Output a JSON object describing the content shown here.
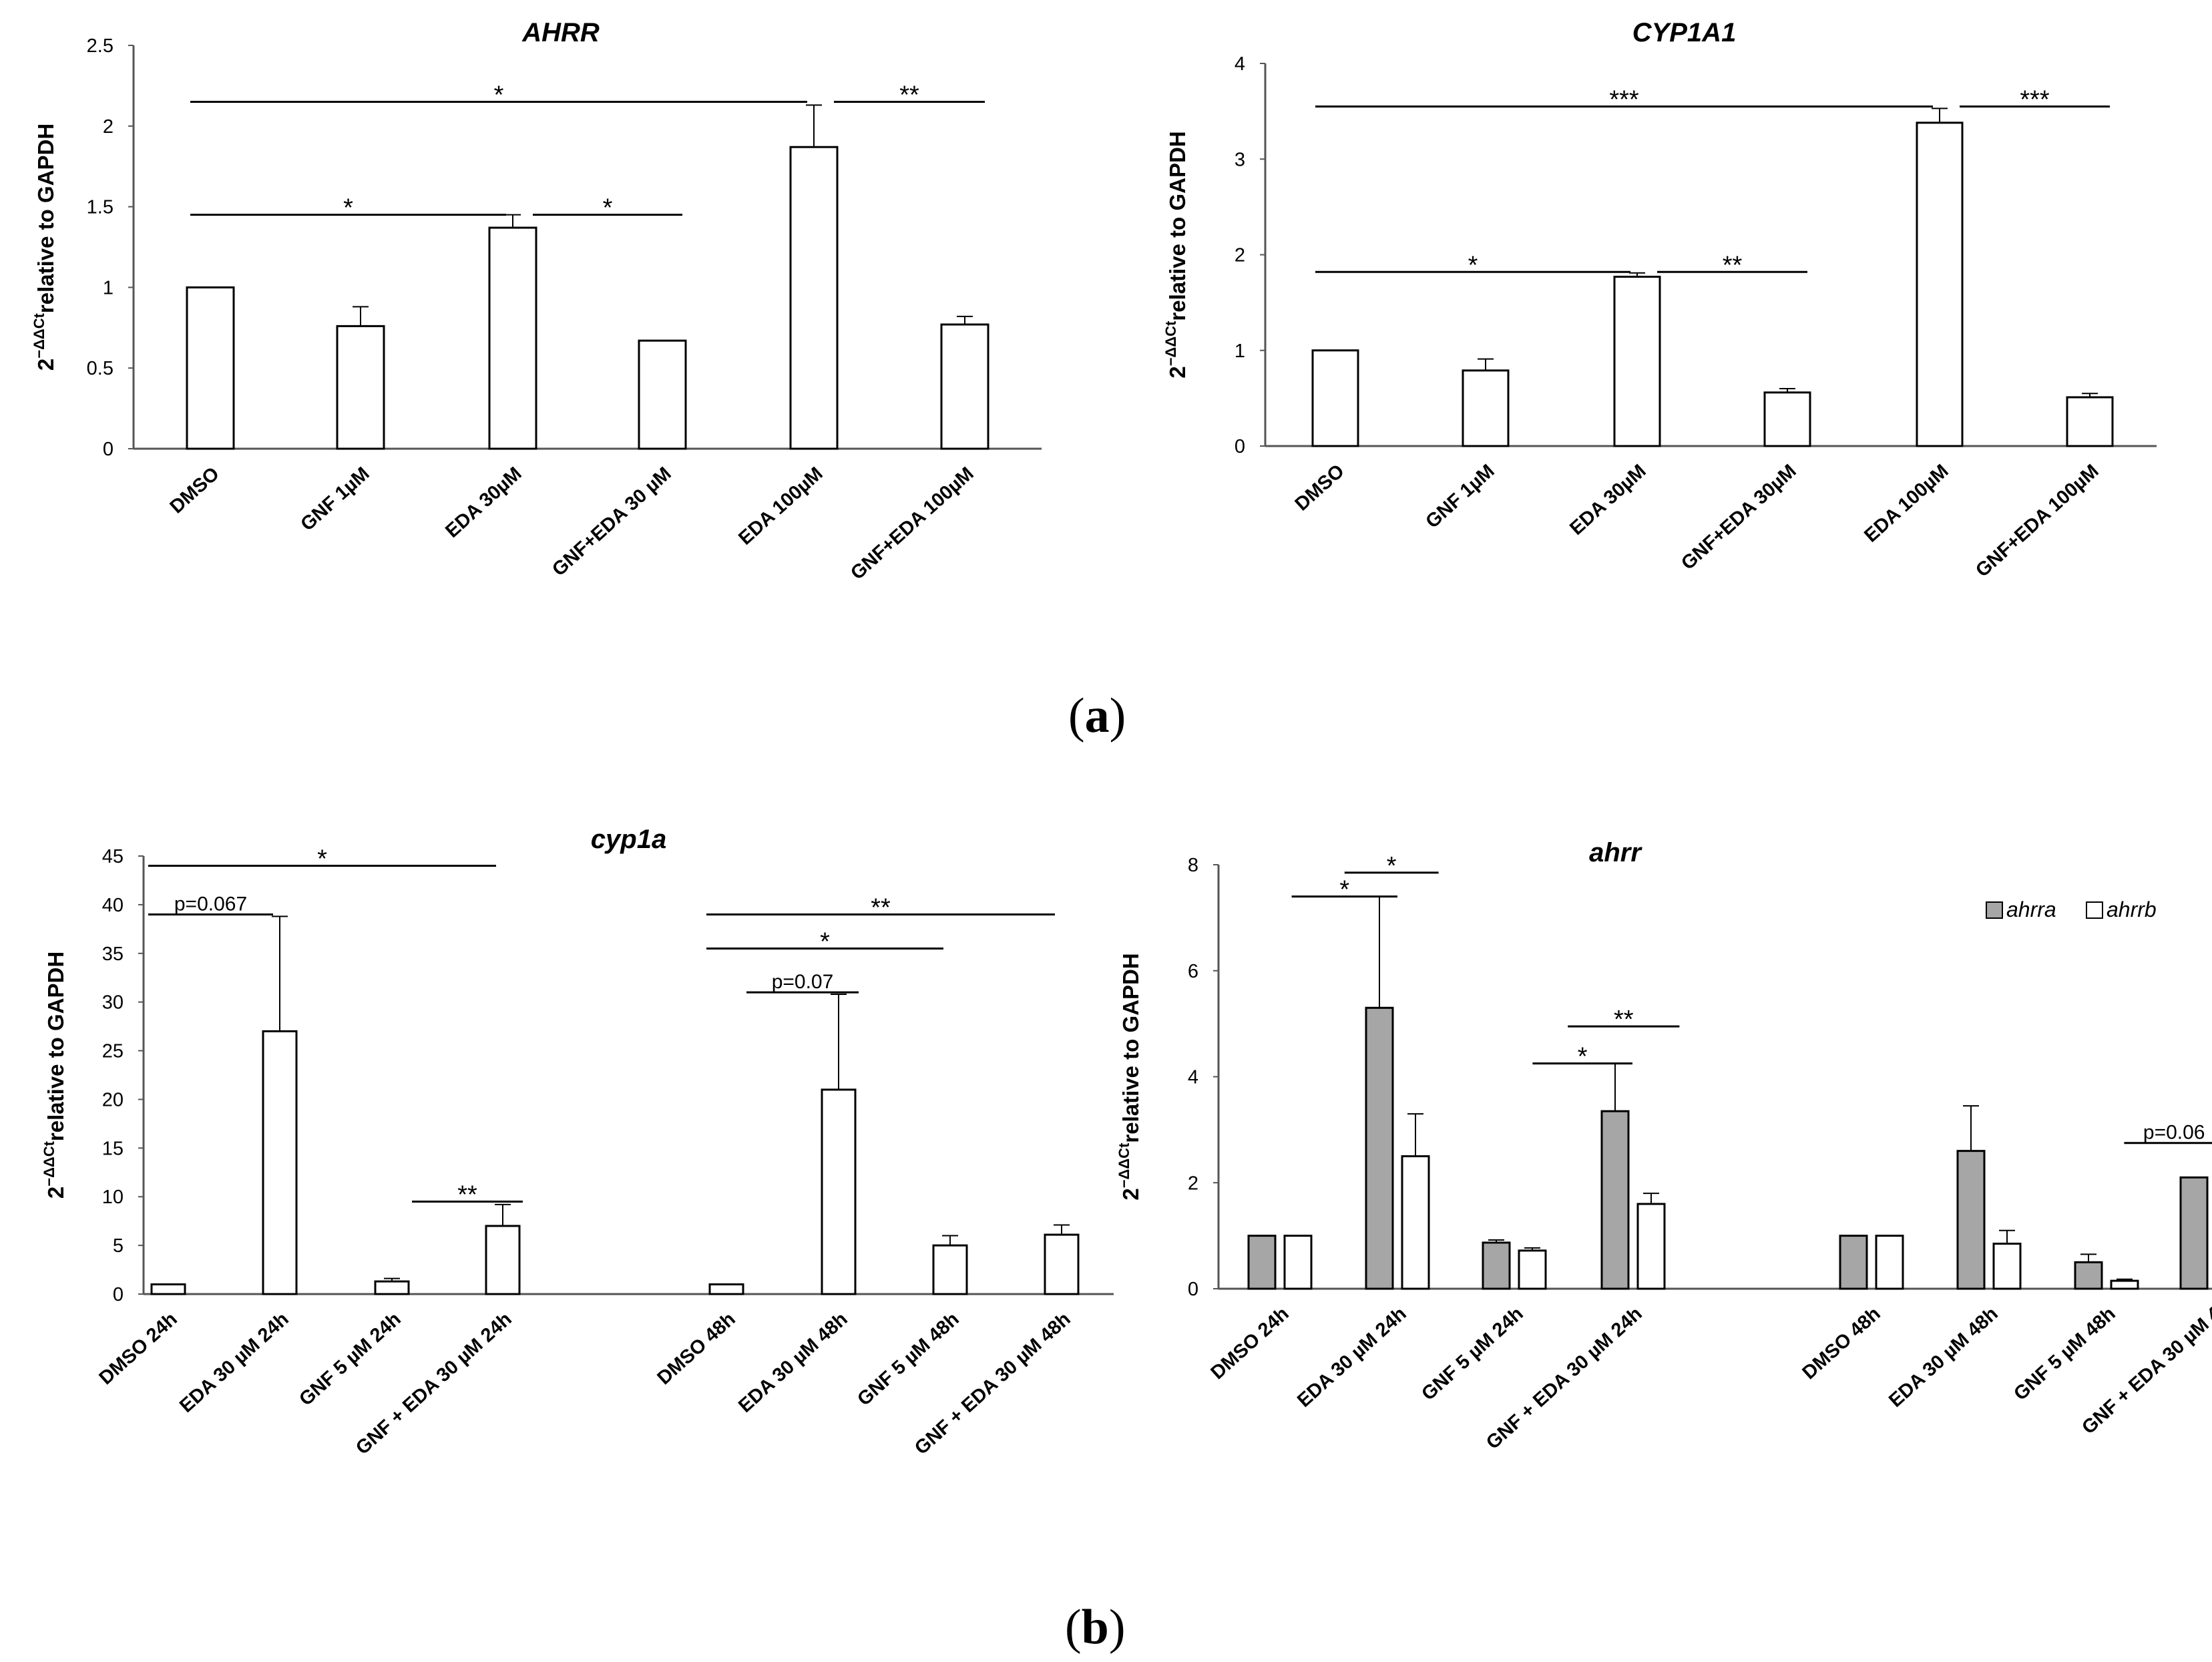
{
  "panels": {
    "a": {
      "label_open": "(",
      "label_letter": "a",
      "label_close": ")"
    },
    "b": {
      "label_open": "(",
      "label_letter": "b",
      "label_close": ")"
    }
  },
  "colors": {
    "bar_fill": "#ffffff",
    "bar_gray": "#a6a6a6",
    "stroke": "#000000"
  },
  "chart_data": [
    {
      "id": "ahrr",
      "type": "bar",
      "title": "AHRR",
      "ylabel_base": "2",
      "ylabel_sup": "−ΔΔCt",
      "ylabel_rest": "relative to GAPDH",
      "ylim": [
        0,
        2.5
      ],
      "yticks": [
        0,
        0.5,
        1,
        1.5,
        2,
        2.5
      ],
      "ytick_labels": [
        "0",
        "0.5",
        "1",
        "1.5",
        "2",
        "2.5"
      ],
      "categories": [
        "DMSO",
        "GNF 1µM",
        "EDA 30µM",
        "GNF+EDA 30 µM",
        "EDA 100µM",
        "GNF+EDA 100µM"
      ],
      "series": [
        {
          "name": "AHRR",
          "color": "#ffffff",
          "values": [
            1.0,
            0.76,
            1.37,
            0.67,
            1.87,
            0.77
          ],
          "errors": [
            0,
            0.12,
            0.08,
            0,
            0.26,
            0.05
          ]
        }
      ],
      "significance": [
        {
          "from": 0,
          "to": 4,
          "label": "*",
          "y": 2.15
        },
        {
          "from": 4,
          "to": 5,
          "label": "**",
          "y": 2.15
        },
        {
          "from": 0,
          "to": 2,
          "label": "*",
          "y": 1.45
        },
        {
          "from": 2,
          "to": 3,
          "label": "*",
          "y": 1.45
        }
      ]
    },
    {
      "id": "cyp1a1",
      "type": "bar",
      "title": "CYP1A1",
      "ylabel_base": "2",
      "ylabel_sup": "−ΔΔCt",
      "ylabel_rest": "relative to GAPDH",
      "ylim": [
        0,
        4
      ],
      "yticks": [
        0,
        1,
        2,
        3,
        4
      ],
      "ytick_labels": [
        "0",
        "1",
        "2",
        "3",
        "4"
      ],
      "categories": [
        "DMSO",
        "GNF 1µM",
        "EDA 30µM",
        "GNF+EDA 30µM",
        "EDA 100µM",
        "GNF+EDA 100µM"
      ],
      "series": [
        {
          "name": "CYP1A1",
          "color": "#ffffff",
          "values": [
            1.0,
            0.79,
            1.77,
            0.56,
            3.38,
            0.51
          ],
          "errors": [
            0,
            0.12,
            0.04,
            0.04,
            0.15,
            0.04
          ]
        }
      ],
      "significance": [
        {
          "from": 0,
          "to": 4,
          "label": "***",
          "y": 3.55
        },
        {
          "from": 4,
          "to": 5,
          "label": "***",
          "y": 3.55
        },
        {
          "from": 0,
          "to": 2,
          "label": "*",
          "y": 1.82
        },
        {
          "from": 2,
          "to": 3,
          "label": "**",
          "y": 1.82
        }
      ]
    },
    {
      "id": "cyp1a",
      "type": "bar",
      "title": "cyp1a",
      "ylabel_base": "2",
      "ylabel_sup": "−ΔΔCt",
      "ylabel_rest": "relative to GAPDH",
      "ylim": [
        0,
        45
      ],
      "yticks": [
        0,
        5,
        10,
        15,
        20,
        25,
        30,
        35,
        40,
        45
      ],
      "ytick_labels": [
        "0",
        "5",
        "10",
        "15",
        "20",
        "25",
        "30",
        "35",
        "40",
        "45"
      ],
      "categories": [
        "DMSO 24h",
        "EDA 30 µM 24h",
        "GNF 5 µM 24h",
        "GNF + EDA 30 µM 24h",
        "DMSO 48h",
        "EDA 30 µM 48h",
        "GNF 5 µM 48h",
        "GNF + EDA 30 µM 48h"
      ],
      "series": [
        {
          "name": "cyp1a",
          "color": "#ffffff",
          "values": [
            1.0,
            27.0,
            1.3,
            7.0,
            1.0,
            21.0,
            5.0,
            6.1
          ],
          "errors": [
            0,
            11.8,
            0.3,
            2.2,
            0,
            9.8,
            1.0,
            1.0
          ]
        }
      ],
      "significance": [
        {
          "from": 0,
          "to": 3,
          "label": "*",
          "y": 44.0
        },
        {
          "from": 0,
          "to": 1,
          "label": "p=0.067",
          "y": 39.0
        },
        {
          "from": 2,
          "to": 3,
          "label": "**",
          "y": 9.5
        },
        {
          "from": 4,
          "to": 7,
          "label": "**",
          "y": 39.0
        },
        {
          "from": 4,
          "to": 6,
          "label": "*",
          "y": 35.5
        },
        {
          "from": 4,
          "to": 5,
          "label": "p=0.07",
          "y": 31.0
        }
      ]
    },
    {
      "id": "ahrr-zebrafish",
      "type": "bar",
      "title": "ahrr",
      "ylabel_base": "2",
      "ylabel_sup": "−ΔΔCt",
      "ylabel_rest": "relative to GAPDH",
      "ylim": [
        0,
        8
      ],
      "yticks": [
        0,
        2,
        4,
        6,
        8
      ],
      "ytick_labels": [
        "0",
        "2",
        "4",
        "6",
        "8"
      ],
      "legend": "top-right",
      "categories": [
        "DMSO 24h",
        "EDA 30 µM 24h",
        "GNF 5 µM 24h",
        "GNF + EDA 30 µM 24h",
        "DMSO 48h",
        "EDA 30 µM 48h",
        "GNF 5 µM 48h",
        "GNF + EDA 30 µM 4"
      ],
      "series": [
        {
          "name": "ahrra",
          "color": "#a6a6a6",
          "values": [
            1.0,
            5.3,
            0.87,
            3.35,
            1.0,
            2.6,
            0.5,
            2.1
          ],
          "errors": [
            0,
            2.1,
            0.05,
            0.9,
            0,
            0.85,
            0.15,
            0
          ]
        },
        {
          "name": "ahrrb",
          "color": "#ffffff",
          "values": [
            1.0,
            2.5,
            0.72,
            1.6,
            1.0,
            0.85,
            0.15,
            null
          ],
          "errors": [
            0,
            0.8,
            0.05,
            0.2,
            0,
            0.25,
            0.03,
            0
          ]
        }
      ],
      "significance": [
        {
          "from": 1,
          "to": 1,
          "label": "*",
          "y": 7.85,
          "span": [
            0.55,
            1.35
          ]
        },
        {
          "from": 0,
          "to": 1,
          "label": "*",
          "y": 7.4,
          "span": [
            0.1,
            1.0
          ]
        },
        {
          "from": 2,
          "to": 3,
          "label": "**",
          "y": 4.95,
          "span": [
            2.45,
            3.4
          ]
        },
        {
          "from": 2,
          "to": 3,
          "label": "*",
          "y": 4.25,
          "span": [
            2.15,
            3.0
          ]
        },
        {
          "from": 6,
          "to": 7,
          "label": "p=0.06",
          "y": 2.75,
          "span": [
            6.15,
            7.0
          ]
        }
      ]
    }
  ]
}
